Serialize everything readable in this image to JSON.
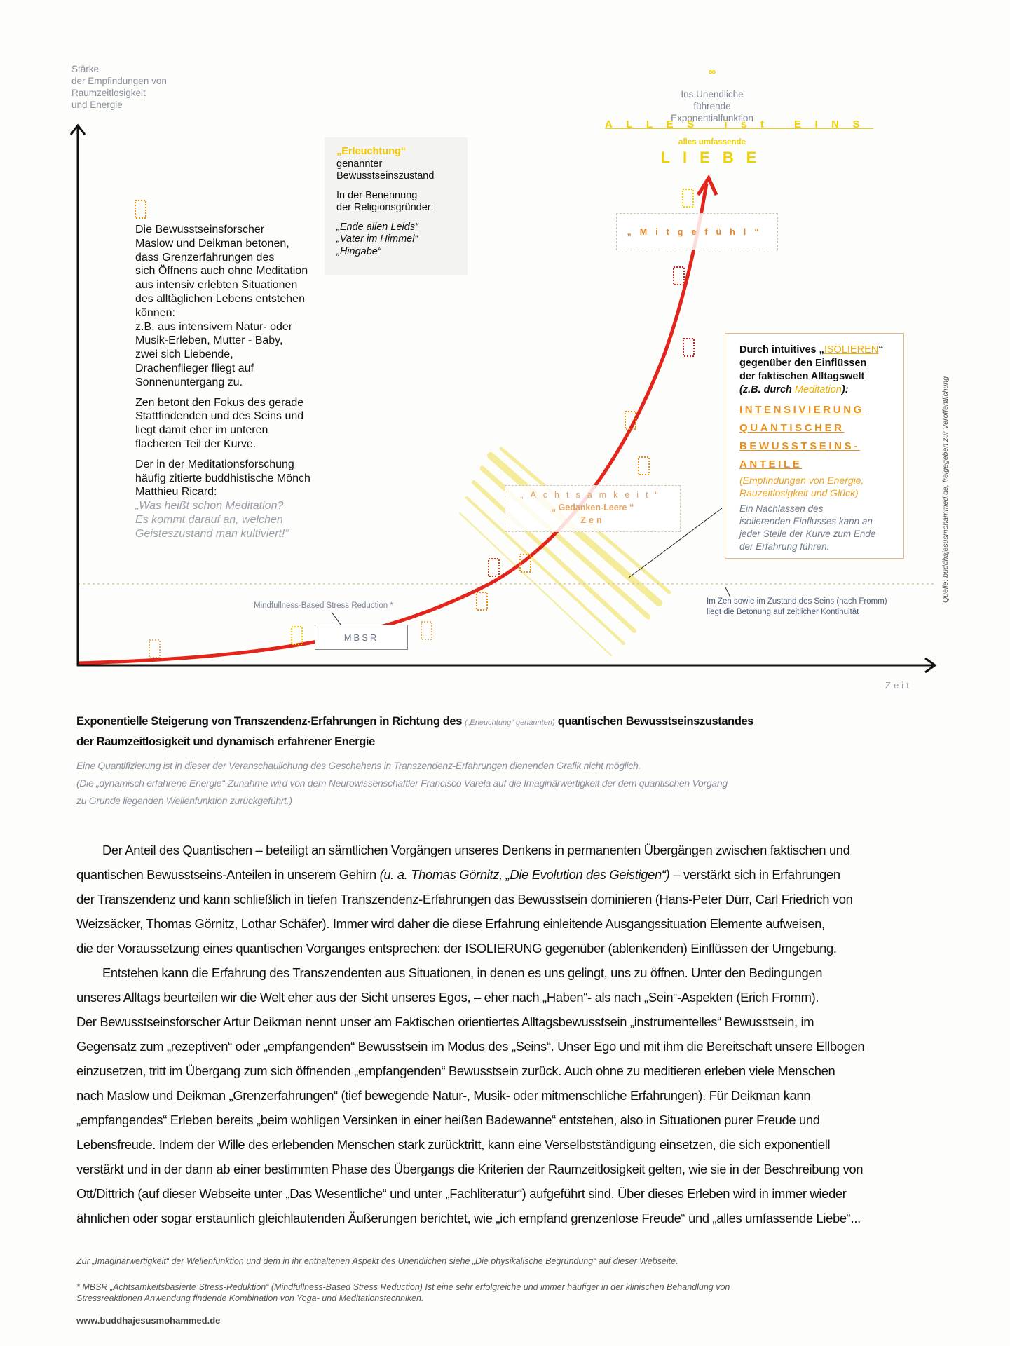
{
  "diagram": {
    "y_axis_label": "Stärke\nder Empfindungen von\nRaumzeitlosigkeit\nund Energie",
    "x_axis_label": "Zeit",
    "infinity": {
      "symbol": "∞",
      "text": "Ins Unendliche\nführende\nExponentialfunktion"
    },
    "alles_ist_eins": "ALLES ist EINS",
    "alles_umfassende": "alles umfassende",
    "liebe": "LIEBE",
    "left_block": {
      "p1": "Die Bewusstseinsforscher\nMaslow und Deikman betonen,\ndass Grenzerfahrungen des\nsich Öffnens auch ohne Meditation\naus intensiv erlebten Situationen\ndes alltäglichen Lebens entstehen\nkönnen:\nz.B. aus intensivem Natur- oder\nMusik-Erleben, Mutter - Baby,\nzwei sich Liebende,\nDrachenflieger fliegt auf\nSonnenuntergang zu.",
      "p2": "Zen betont den Fokus des gerade\nStattfindenden und des Seins und\nliegt damit eher im unteren\nflacheren Teil der Kurve.",
      "p3": "Der in der Meditationsforschung\nhäufig zitierte buddhistische Mönch\nMatthieu Ricard:",
      "quote": "„Was heißt schon Meditation?\nEs kommt darauf an, welchen\nGeisteszustand man kultiviert!“"
    },
    "erleuchtung": {
      "highlight": "„Erleuchtung“",
      "line": "genannter\nBewusstseinszustand",
      "p2": "In der Benennung\nder Religionsgründer:",
      "quotes": "„Ende allen Leids“\n„Vater im Himmel“\n„Hingabe“"
    },
    "mitgefuehl": "„Mitgefühl“",
    "isolieren_box": {
      "intro_a": "Durch intuitives „",
      "isolieren": "ISOLIEREN",
      "intro_b": "“\ngegenüber den Einflüssen\nder faktischen Alltagswelt\n",
      "intro_c": "(z.B. durch ",
      "meditation": "Meditation",
      "intro_d": "):",
      "caps": "INTENSIVIERUNG\nQUANTISCHER\nBEWUSSTSEINS-\nANTEILE",
      "sub": "(Empfindungen von Energie,\nRauzeitlosigkeit und Glück)",
      "note": "Ein Nachlassen des\nisolierenden Einflusses kann an\njeder Stelle der Kurve zum Ende\nder Erfahrung führen."
    },
    "achtsamkeit": {
      "l1": "„Achtsamkeit“",
      "l2": "„ Gedanken-Leere “",
      "l3": "Zen"
    },
    "mbsr_label": "Mindfullness-Based Stress Reduction *",
    "mbsr": "MBSR",
    "zen_note": "Im Zen sowie im Zustand des Seins (nach Fromm)\nliegt die Betonung auf zeitlicher Kontinuität",
    "quelle": "Quelle:  buddhajesusmohammed.de, freigegeben zur Veröffentlichung",
    "colors": {
      "curve": "#e3241a",
      "yellow": "#f2d000",
      "orange": "#e8901a",
      "hatch": "#f4ec9a"
    }
  },
  "caption": {
    "a": "Exponentielle Steigerung von Transzendenz-Erfahrungen in Richtung des ",
    "small": "(„Erleuchtung“ genannten)",
    "b": " quantischen Bewusstseinszustandes",
    "c": "der Raumzeitlosigkeit und dynamisch erfahrener Energie"
  },
  "notes": {
    "l1": "Eine Quantifizierung ist in dieser der Veranschaulichung des Geschehens in Transzendenz-Erfahrungen dienenden Grafik nicht möglich.",
    "l2": "(Die „dynamisch erfahrene Energie“-Zunahme wird von dem Neurowissenschaftler Francisco Varela auf die Imaginärwertigkeit der dem quantischen Vorgang",
    "l3": "zu Grunde liegenden Wellenfunktion zurückgeführt.)"
  },
  "body": {
    "lines": [
      [
        {
          "t": "Der Anteil des Quantischen  –  beteiligt an sämtlichen Vorgängen unseres Denkens in permanenten Übergängen zwischen faktischen und"
        }
      ],
      [
        {
          "t": "quantischen Bewusstseins-Anteilen in unserem Gehirn "
        },
        {
          "t": "(u. a. Thomas Görnitz, „Die Evolution des Geistigen“)",
          "i": true
        },
        {
          "t": "  –  verstärkt sich in Erfahrungen"
        }
      ],
      [
        {
          "t": "der Transzendenz und kann schließlich in tiefen Transzendenz-Erfahrungen das Bewusstsein dominieren (Hans-Peter Dürr, Carl Friedrich von"
        }
      ],
      [
        {
          "t": "Weizsäcker, Thomas Görnitz, Lothar Schäfer). Immer wird daher die diese Erfahrung einleitende Ausgangssituation Elemente aufweisen,"
        }
      ],
      [
        {
          "t": "die der Voraussetzung eines quantischen Vorganges entsprechen:  der ISOLIERUNG gegenüber (ablenkenden) Einflüssen der Umgebung."
        }
      ],
      [
        {
          "t": "Entstehen kann die Erfahrung des Transzendenten aus Situationen, in denen es uns gelingt, uns zu öffnen. Unter den Bedingungen"
        }
      ],
      [
        {
          "t": "unseres Alltags beurteilen wir die Welt eher aus der Sicht unseres Egos,  –  eher nach „Haben“-  als nach „Sein“-Aspekten (Erich Fromm)."
        }
      ],
      [
        {
          "t": "Der Bewusstseinsforscher Artur Deikman nennt unser am Faktischen orientiertes Alltagsbewusstsein „instrumentelles“ Bewusstsein, im"
        }
      ],
      [
        {
          "t": "Gegensatz zum „rezeptiven“ oder „empfangenden“ Bewusstsein im Modus des „Seins“. Unser Ego und mit ihm die Bereitschaft unsere Ellbogen"
        }
      ],
      [
        {
          "t": "einzusetzen, tritt im Übergang zum sich öffnenden „empfangenden“ Bewusstsein zurück. Auch ohne zu meditieren erleben viele Menschen"
        }
      ],
      [
        {
          "t": "nach Maslow und Deikman „Grenzerfahrungen“  (tief bewegende Natur-, Musik- oder mitmenschliche Erfahrungen). Für Deikman kann"
        }
      ],
      [
        {
          "t": "„empfangendes“ Erleben bereits „beim wohligen Versinken in einer heißen Badewanne“ entstehen, also in Situationen purer Freude und"
        }
      ],
      [
        {
          "t": "Lebensfreude. Indem der Wille des erlebenden Menschen stark zurücktritt, kann eine Verselbstständigung einsetzen, die sich exponentiell"
        }
      ],
      [
        {
          "t": "verstärkt und in der dann ab einer bestimmten Phase des Übergangs die Kriterien der Raumzeitlosigkeit gelten, wie sie in der Beschreibung von"
        }
      ],
      [
        {
          "t": "Ott/Dittrich  (auf dieser Webseite unter „Das Wesentliche“ und unter „Fachliteratur“) aufgeführt sind. Über dieses Erleben wird in immer wieder"
        }
      ],
      [
        {
          "t": "ähnlichen oder sogar erstaunlich gleichlautenden Äußerungen berichtet, wie  „ich empfand grenzenlose Freude“ und „alles umfassende Liebe“..."
        }
      ]
    ],
    "indented": [
      0,
      5
    ]
  },
  "footer": {
    "note1": "Zur „Imaginärwertigkeit“ der Wellenfunktion und dem in ihr enthaltenen Aspekt des Unendlichen siehe „Die physikalische Begründung“ auf dieser Webseite.",
    "note2": "* MBSR „Achtsamkeitsbasierte Stress-Reduktion“ (Mindfullness-Based Stress Reduction) Ist eine sehr erfolgreiche und immer häufiger in der klinischen Behandlung von\n  Stressreaktionen Anwendung findende Kombination von Yoga- und Meditationstechniken.",
    "website": "www.buddhajesusmohammed.de"
  }
}
